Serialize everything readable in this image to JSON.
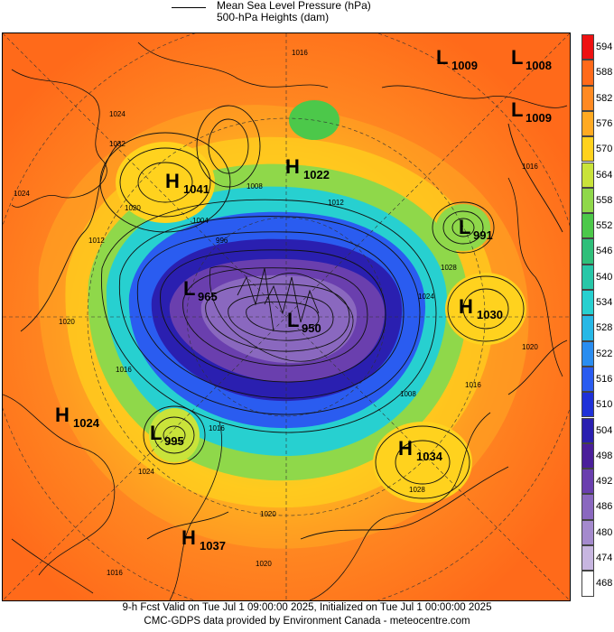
{
  "legend": {
    "line1": "Mean Sea Level Pressure (hPa)",
    "line2": "500-hPa Heights (dam)"
  },
  "scale": {
    "values": [
      "594",
      "588",
      "582",
      "576",
      "570",
      "564",
      "558",
      "552",
      "546",
      "540",
      "534",
      "528",
      "522",
      "516",
      "510",
      "504",
      "498",
      "492",
      "486",
      "480",
      "474",
      "468"
    ],
    "colors": [
      "#ee1111",
      "#ff6a1a",
      "#ff8a22",
      "#ffaa22",
      "#ffd21e",
      "#c9e33a",
      "#8fd84a",
      "#4cc84a",
      "#2fbf7a",
      "#27c7a8",
      "#27d0d0",
      "#27b8e6",
      "#2a8df0",
      "#2a5cf0",
      "#1f31d8",
      "#2a1fb0",
      "#4a1f9a",
      "#6a3fae",
      "#8a68bf",
      "#a48acd",
      "#c7b6e0",
      "#ffffff"
    ]
  },
  "pressure_systems": [
    {
      "type": "L",
      "value": "1009"
    },
    {
      "type": "L",
      "value": "1008"
    },
    {
      "type": "L",
      "value": "1009"
    },
    {
      "type": "H",
      "value": "1022"
    },
    {
      "type": "H",
      "value": "1041"
    },
    {
      "type": "L",
      "value": "991"
    },
    {
      "type": "H",
      "value": "1030"
    },
    {
      "type": "L",
      "value": "965"
    },
    {
      "type": "L",
      "value": "950"
    },
    {
      "type": "H",
      "value": "1024"
    },
    {
      "type": "L",
      "value": "995"
    },
    {
      "type": "H",
      "value": "1034"
    },
    {
      "type": "H",
      "value": "1037"
    }
  ],
  "contour_labels": [
    "1016",
    "1024",
    "1032",
    "1020",
    "1012",
    "1020",
    "1016",
    "1024",
    "1004",
    "996",
    "1008",
    "1028",
    "1024",
    "1016",
    "1008",
    "1012",
    "1016",
    "1020",
    "1024",
    "1016",
    "1028",
    "1020",
    "1016",
    "1020"
  ],
  "footer": {
    "line1": "9-h Fcst Valid on Tue Jul  1 09:00:00 2025, Initialized on Tue Jul  1 00:00:00 2025",
    "line2": "CMC-GDPS data provided by Environment Canada - meteocentre.com"
  }
}
